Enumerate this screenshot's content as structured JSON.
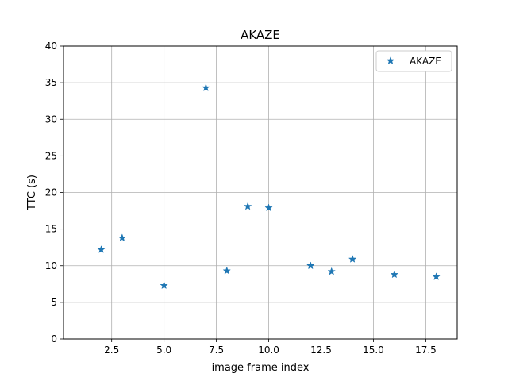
{
  "chart_data": {
    "type": "scatter",
    "title": "AKAZE",
    "xlabel": "image frame index",
    "ylabel": "TTC (s)",
    "xlim": [
      0.2,
      19.0
    ],
    "ylim": [
      0,
      40
    ],
    "xticks": [
      2.5,
      5.0,
      7.5,
      10.0,
      12.5,
      15.0,
      17.5
    ],
    "xtick_labels": [
      "2.5",
      "5.0",
      "7.5",
      "10.0",
      "12.5",
      "15.0",
      "17.5"
    ],
    "yticks": [
      0,
      5,
      10,
      15,
      20,
      25,
      30,
      35,
      40
    ],
    "ytick_labels": [
      "0",
      "5",
      "10",
      "15",
      "20",
      "25",
      "30",
      "35",
      "40"
    ],
    "grid": true,
    "legend_position": "top-right",
    "marker": "star",
    "series": [
      {
        "name": "AKAZE",
        "color": "#1f77b4",
        "x": [
          2,
          3,
          5,
          7,
          8,
          9,
          10,
          12,
          13,
          14,
          16,
          18
        ],
        "y": [
          12.2,
          13.8,
          7.3,
          34.3,
          9.3,
          18.1,
          17.9,
          10.0,
          9.2,
          10.9,
          8.8,
          8.5
        ]
      }
    ]
  }
}
